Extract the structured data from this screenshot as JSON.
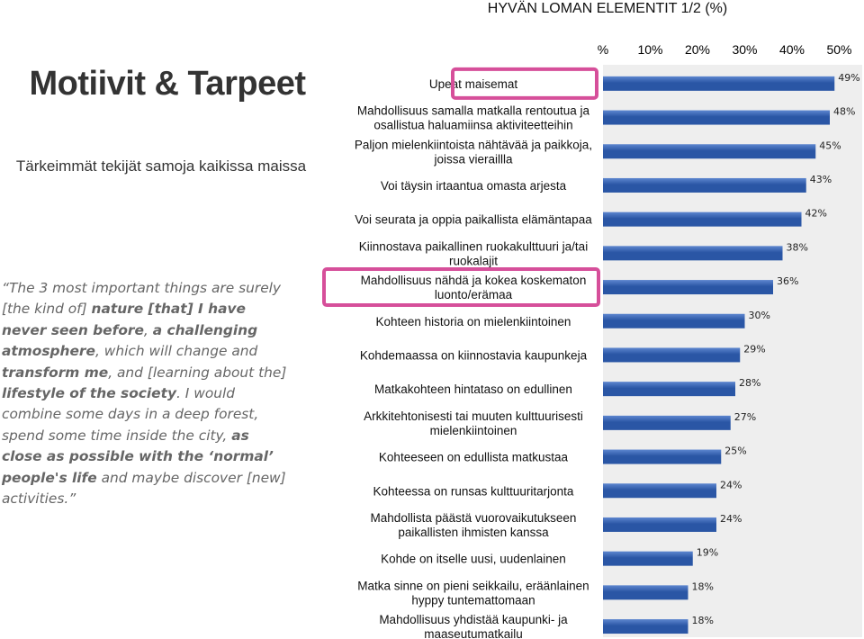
{
  "header": {
    "chart_title": "HYVÄN LOMAN ELEMENTIT 1/2 (%)"
  },
  "left": {
    "title": "Motiivit & Tarpeet",
    "subtitle": "Tärkeimmät tekijät samoja kaikissa maissa",
    "quote": [
      {
        "text": "The 3 most important things are surely [the kind of] ",
        "bold": false
      },
      {
        "text": "nature [that] I have never seen before",
        "bold": true
      },
      {
        "text": ", ",
        "bold": false
      },
      {
        "text": "a challenging atmosphere",
        "bold": true
      },
      {
        "text": ", which will change and ",
        "bold": false
      },
      {
        "text": "transform me",
        "bold": true
      },
      {
        "text": ", and [learning about the] ",
        "bold": false
      },
      {
        "text": "lifestyle of the society",
        "bold": true
      },
      {
        "text": ". I would combine some days in a deep forest, spend some time inside the city, ",
        "bold": false
      },
      {
        "text": "as close as possible with the ‘normal’ people's life",
        "bold": true
      },
      {
        "text": " and maybe discover [new] activities.",
        "bold": false
      }
    ]
  },
  "colors": {
    "bar": "#2a56a5",
    "bar_top": "#5d86cf",
    "plot_bg": "#eeeeee",
    "highlight": "#d64f9a"
  },
  "chart_data": {
    "type": "bar",
    "orientation": "horizontal",
    "title": "HYVÄN LOMAN ELEMENTIT 1/2 (%)",
    "xlim": [
      0,
      55
    ],
    "xticks": [
      "%",
      "10%",
      "20%",
      "30%",
      "40%",
      "50%"
    ],
    "xtick_values": [
      0,
      10,
      20,
      30,
      40,
      50
    ],
    "grid": false,
    "categories": [
      [
        "Upeat maisemat"
      ],
      [
        "Mahdollisuus samalla matkalla rentoutua ja",
        "osallistua haluamiinsa aktiviteetteihin"
      ],
      [
        "Paljon mielenkiintoista nähtävää ja paikkoja,",
        "joissa vieraillla"
      ],
      [
        "Voi täysin irtaantua omasta arjesta"
      ],
      [
        "Voi seurata ja oppia paikallista elämäntapaa"
      ],
      [
        "Kiinnostava paikallinen ruokakulttuuri ja/tai",
        "ruokalajit"
      ],
      [
        "Mahdollisuus nähdä ja kokea koskematon",
        "luonto/erämaa"
      ],
      [
        "Kohteen historia on mielenkiintoinen"
      ],
      [
        "Kohdemaassa on kiinnostavia kaupunkeja"
      ],
      [
        "Matkakohteen hintataso on edullinen"
      ],
      [
        "Arkkitehtonisesti tai muuten kulttuurisesti",
        "mielenkiintoinen"
      ],
      [
        "Kohteeseen on edullista matkustaa"
      ],
      [
        "Kohteessa on runsas kulttuuritarjonta"
      ],
      [
        "Mahdollista päästä vuorovaikutukseen",
        "paikallisten ihmisten kanssa"
      ],
      [
        "Kohde on itselle uusi, uudenlainen"
      ],
      [
        "Matka sinne on pieni seikkailu, eräänlainen",
        "hyppy tuntemattomaan"
      ],
      [
        "Mahdollisuus yhdistää kaupunki- ja",
        "maaseutumatkailu"
      ]
    ],
    "values": [
      49,
      48,
      45,
      43,
      42,
      38,
      36,
      30,
      29,
      28,
      27,
      25,
      24,
      24,
      19,
      18,
      18
    ],
    "value_labels": [
      "49%",
      "48%",
      "45%",
      "43%",
      "42%",
      "38%",
      "36%",
      "30%",
      "29%",
      "28%",
      "27%",
      "25%",
      "24%",
      "24%",
      "19%",
      "18%",
      "18%"
    ],
    "highlighted": [
      0,
      6
    ]
  }
}
